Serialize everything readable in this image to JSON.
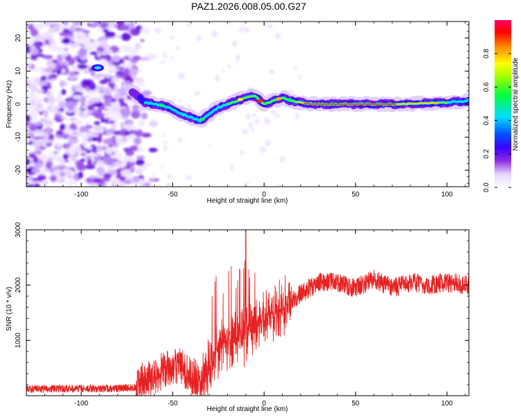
{
  "title": "PAZ1.2026.008.05.00.G27",
  "chart_data": [
    {
      "type": "heatmap",
      "name": "spectrogram",
      "xlabel": "Height of straight line (km)",
      "ylabel": "Frequency (Hz)",
      "xlim": [
        -130,
        112
      ],
      "ylim": [
        -25,
        25
      ],
      "xticks": [
        -100,
        -50,
        0,
        50,
        100
      ],
      "yticks": [
        -20,
        -10,
        0,
        10,
        20
      ],
      "colorbar": {
        "label": "Normalized spectral amplitude",
        "range": [
          0,
          1
        ],
        "ticks": [
          0.0,
          0.2,
          0.4,
          0.6,
          0.8
        ]
      },
      "ridge": {
        "x": [
          -75,
          -70,
          -65,
          -60,
          -55,
          -50,
          -45,
          -40,
          -35,
          -30,
          -25,
          -20,
          -15,
          -10,
          -5,
          0,
          5,
          10,
          15,
          20,
          25,
          50,
          75,
          100,
          112
        ],
        "y": [
          5,
          3,
          0.5,
          0,
          -0.5,
          -1.5,
          -3,
          -4,
          -5,
          -3,
          -1,
          0,
          1,
          2,
          2.5,
          0,
          1,
          2,
          1,
          0.5,
          0,
          0,
          0,
          0.5,
          1
        ]
      }
    },
    {
      "type": "line",
      "name": "snr",
      "xlabel": "Height of straight line (km)",
      "ylabel": "SNR (10 * v/v)",
      "xlim": [
        -130,
        112
      ],
      "ylim": [
        0,
        3000
      ],
      "xticks": [
        -100,
        -50,
        0,
        50,
        100
      ],
      "yticks": [
        1000,
        2000,
        3000
      ],
      "color": "#e62222",
      "envelope": {
        "x": [
          -130,
          -100,
          -80,
          -70,
          -65,
          -55,
          -50,
          -45,
          -40,
          -35,
          -30,
          -25,
          -20,
          -15,
          -10,
          -5,
          0,
          5,
          10,
          15,
          20,
          25,
          30,
          40,
          50,
          60,
          70,
          80,
          90,
          100,
          112
        ],
        "y": [
          120,
          130,
          130,
          150,
          300,
          450,
          550,
          520,
          380,
          280,
          500,
          900,
          950,
          1000,
          1100,
          1250,
          1400,
          1500,
          1550,
          1700,
          1850,
          1950,
          2050,
          2050,
          1950,
          2100,
          1950,
          2050,
          2000,
          2050,
          2000
        ]
      }
    }
  ]
}
